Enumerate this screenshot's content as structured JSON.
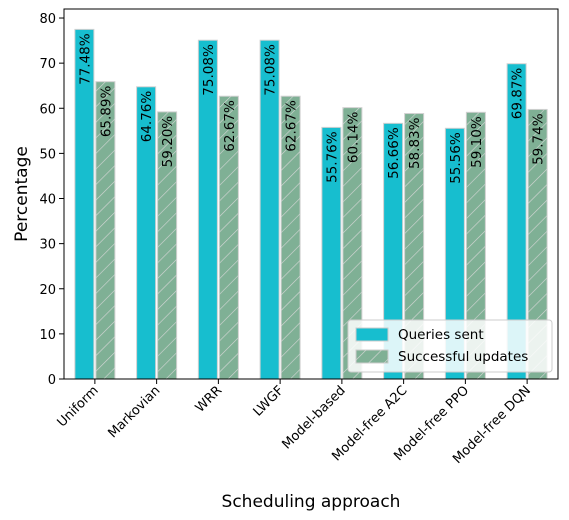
{
  "chart_data": {
    "type": "bar",
    "xlabel": "Scheduling approach",
    "ylabel": "Percentage",
    "ylim": [
      0,
      82
    ],
    "yticks": [
      0,
      10,
      20,
      30,
      40,
      50,
      60,
      70,
      80
    ],
    "grid": false,
    "legend_position": "bottom-right",
    "categories": [
      "Uniform",
      "Markovian",
      "WRR",
      "LWGF",
      "Model-based",
      "Model-free A2C",
      "Model-free PPO",
      "Model-free DQN"
    ],
    "series": [
      {
        "name": "Queries sent",
        "color": "#17becf",
        "hatch": false,
        "values": [
          77.48,
          64.76,
          75.08,
          75.08,
          55.76,
          56.66,
          55.56,
          69.87
        ],
        "labels": [
          "77.48%",
          "64.76%",
          "75.08%",
          "75.08%",
          "55.76%",
          "56.66%",
          "55.56%",
          "69.87%"
        ]
      },
      {
        "name": "Successful updates",
        "color": "#7fb095",
        "hatch": true,
        "values": [
          65.89,
          59.2,
          62.67,
          62.67,
          60.14,
          58.83,
          59.1,
          59.74
        ],
        "labels": [
          "65.89%",
          "59.20%",
          "62.67%",
          "62.67%",
          "60.14%",
          "58.83%",
          "59.10%",
          "59.74%"
        ]
      }
    ]
  }
}
